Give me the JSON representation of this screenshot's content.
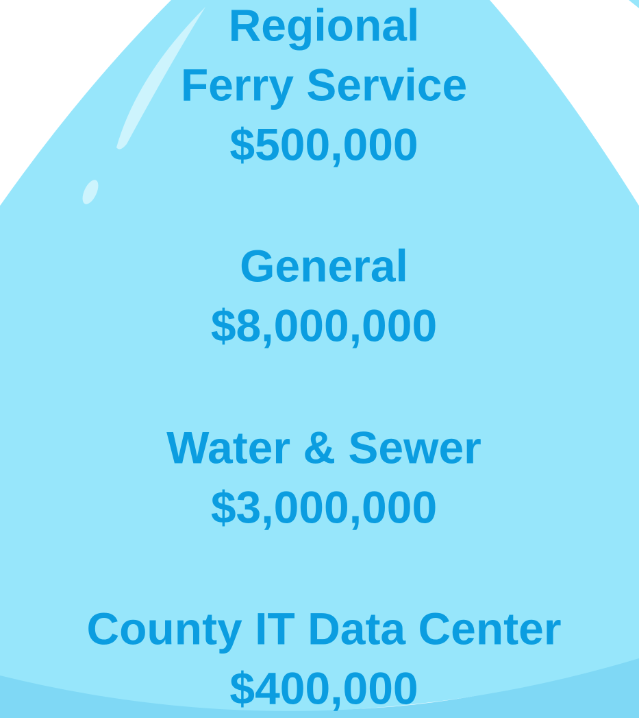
{
  "items": [
    {
      "lines": [
        "Regional",
        "Ferry Service"
      ],
      "amount": "$500,000"
    },
    {
      "lines": [
        "General"
      ],
      "amount": "$8,000,000"
    },
    {
      "lines": [
        "Water & Sewer"
      ],
      "amount": "$3,000,000"
    },
    {
      "lines": [
        "County IT Data Center"
      ],
      "amount": "$400,000"
    }
  ]
}
